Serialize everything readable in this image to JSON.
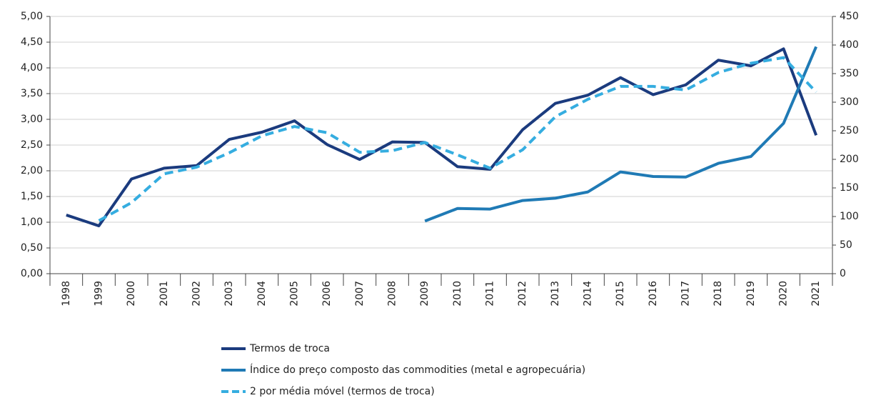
{
  "chart_data": {
    "type": "line",
    "categories": [
      "1998",
      "1999",
      "2000",
      "2001",
      "2002",
      "2003",
      "2004",
      "2005",
      "2006",
      "2007",
      "2008",
      "2009",
      "2010",
      "2011",
      "2012",
      "2013",
      "2014",
      "2015",
      "2016",
      "2017",
      "2018",
      "2019",
      "2020",
      "2021"
    ],
    "series": [
      {
        "name": "Termos de troca",
        "color": "#1b3b7e",
        "dash": false,
        "values": [
          1.14,
          0.93,
          1.84,
          2.05,
          2.1,
          2.61,
          2.75,
          2.97,
          2.51,
          2.22,
          2.56,
          2.55,
          2.08,
          2.03,
          2.8,
          3.31,
          3.47,
          3.81,
          3.48,
          3.67,
          4.15,
          4.04,
          4.37,
          2.69
        ]
      },
      {
        "name": "Índice do preço composto das commodities (metal e agropecuária)",
        "color": "#1f7ab5",
        "dash": false,
        "axis": "y2",
        "values": [
          null,
          null,
          null,
          null,
          null,
          null,
          null,
          null,
          null,
          null,
          null,
          92,
          114,
          113,
          128,
          132,
          143,
          178,
          170,
          169,
          193,
          205,
          263,
          397
        ]
      },
      {
        "name": "2 por média móvel (termos de troca)",
        "color": "#35ade0",
        "dash": true,
        "values": [
          null,
          1.03,
          1.38,
          1.94,
          2.07,
          2.35,
          2.68,
          2.86,
          2.74,
          2.36,
          2.39,
          2.55,
          2.31,
          2.05,
          2.41,
          3.05,
          3.39,
          3.64,
          3.64,
          3.57,
          3.91,
          4.09,
          4.2,
          3.53
        ]
      }
    ],
    "ylim": [
      0,
      5
    ],
    "yticks": [
      {
        "value": 0,
        "label": "0,00"
      },
      {
        "value": 0.5,
        "label": "0,50"
      },
      {
        "value": 1,
        "label": "1,00"
      },
      {
        "value": 1.5,
        "label": "1,50"
      },
      {
        "value": 2,
        "label": "2,00"
      },
      {
        "value": 2.5,
        "label": "2,50"
      },
      {
        "value": 3,
        "label": "3,00"
      },
      {
        "value": 3.5,
        "label": "3,50"
      },
      {
        "value": 4,
        "label": "4,00"
      },
      {
        "value": 4.5,
        "label": "4,50"
      },
      {
        "value": 5,
        "label": "5,00"
      }
    ],
    "y2lim": [
      0,
      450
    ],
    "y2ticks": [
      0,
      50,
      100,
      150,
      200,
      250,
      300,
      350,
      400,
      450
    ],
    "grid": true
  }
}
